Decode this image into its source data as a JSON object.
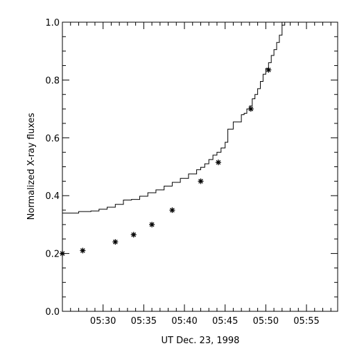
{
  "chart_data": {
    "type": "line",
    "title": "",
    "xlabel": "UT Dec. 23, 1998",
    "ylabel": "Normalized X-ray fluxes",
    "xlim": [
      "05:25:00",
      "05:58:50"
    ],
    "ylim": [
      0.0,
      1.0
    ],
    "x_ticks": [
      "05:30",
      "05:35",
      "05:40",
      "05:45",
      "05:50",
      "05:55"
    ],
    "y_ticks": [
      "0.0",
      "0.2",
      "0.4",
      "0.6",
      "0.8",
      "1.0"
    ],
    "grid": false,
    "legend": "none",
    "series": [
      {
        "style": "line",
        "x": [
          "05:25:00",
          "05:27:00",
          "05:28:30",
          "05:29:30",
          "05:30:30",
          "05:31:30",
          "05:32:30",
          "05:33:30",
          "05:34:30",
          "05:35:30",
          "05:36:30",
          "05:37:30",
          "05:38:30",
          "05:39:30",
          "05:40:30",
          "05:41:30",
          "05:42:00",
          "05:42:30",
          "05:43:00",
          "05:43:30",
          "05:44:00",
          "05:44:30",
          "05:45:00",
          "05:45:20",
          "05:45:40",
          "05:46:00",
          "05:46:40",
          "05:47:00",
          "05:47:20",
          "05:47:40",
          "05:48:00",
          "05:48:20",
          "05:48:40",
          "05:49:00",
          "05:49:20",
          "05:49:40",
          "05:50:00",
          "05:50:20",
          "05:50:40",
          "05:51:00",
          "05:51:20",
          "05:51:40",
          "05:52:00",
          "05:52:20"
        ],
        "y": [
          0.34,
          0.345,
          0.347,
          0.353,
          0.36,
          0.37,
          0.385,
          0.387,
          0.398,
          0.41,
          0.42,
          0.433,
          0.446,
          0.46,
          0.475,
          0.49,
          0.498,
          0.51,
          0.525,
          0.54,
          0.55,
          0.565,
          0.585,
          0.63,
          0.63,
          0.655,
          0.655,
          0.68,
          0.685,
          0.7,
          0.71,
          0.735,
          0.75,
          0.77,
          0.795,
          0.82,
          0.84,
          0.86,
          0.885,
          0.905,
          0.93,
          0.955,
          0.99,
          1.0
        ]
      },
      {
        "style": "asterisk",
        "x": [
          "05:25:00",
          "05:27:30",
          "05:31:30",
          "05:33:45",
          "05:36:00",
          "05:38:30",
          "05:42:00",
          "05:44:10",
          "05:48:10",
          "05:50:20"
        ],
        "y": [
          0.2,
          0.21,
          0.24,
          0.265,
          0.3,
          0.35,
          0.45,
          0.515,
          0.7,
          0.835
        ]
      }
    ]
  }
}
